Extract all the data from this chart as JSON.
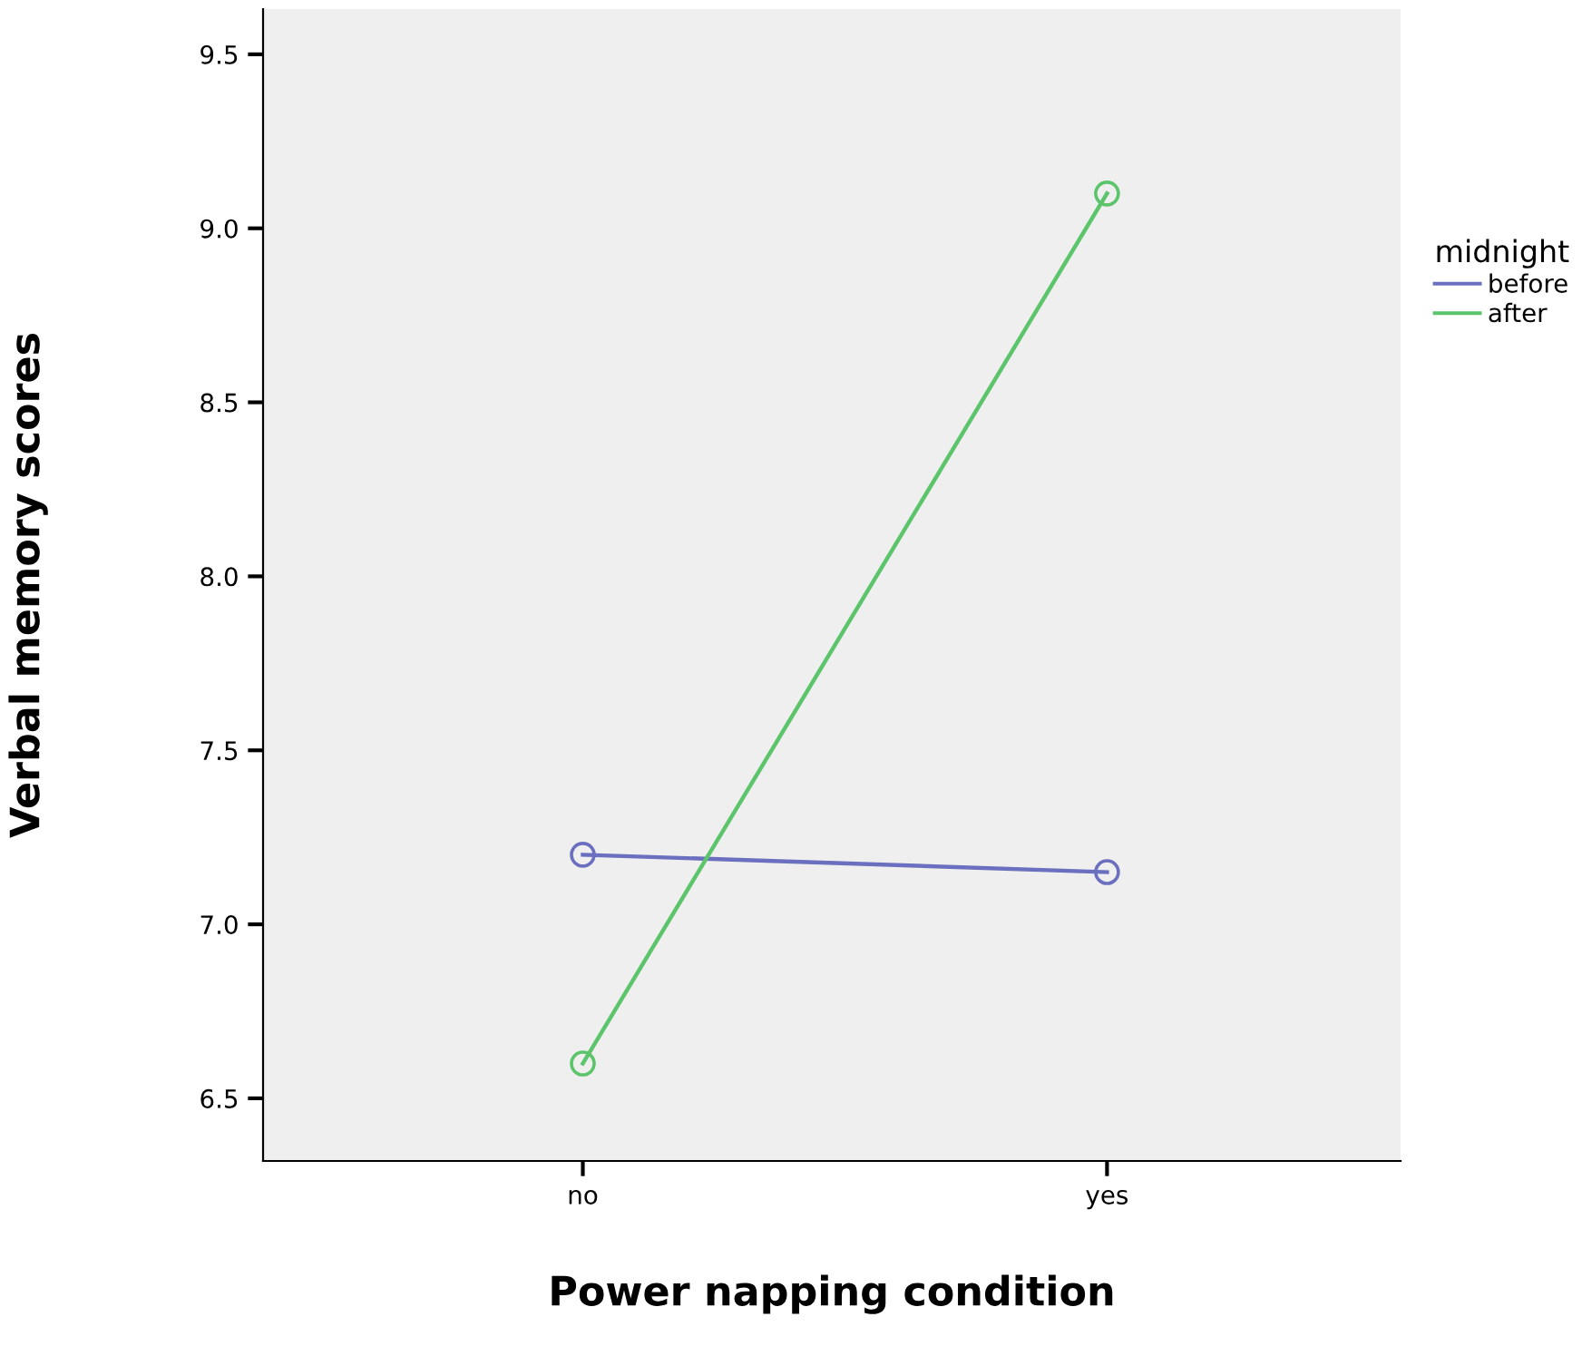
{
  "chart_data": {
    "type": "line",
    "xlabel": "Power napping condition",
    "ylabel": "Verbal memory scores",
    "legend_title": "midnight",
    "categories": [
      "no",
      "yes"
    ],
    "series": [
      {
        "name": "before",
        "color": "#6b6fbf",
        "values": [
          7.2,
          7.15
        ]
      },
      {
        "name": "after",
        "color": "#5cc46b",
        "values": [
          6.6,
          9.1
        ]
      }
    ],
    "ylim": [
      6.32,
      9.63
    ],
    "yticks": [
      {
        "value": 6.5,
        "label": "6.5"
      },
      {
        "value": 7.0,
        "label": "7.0"
      },
      {
        "value": 7.5,
        "label": "7.5"
      },
      {
        "value": 8.0,
        "label": "8.0"
      },
      {
        "value": 8.5,
        "label": "8.5"
      },
      {
        "value": 9.0,
        "label": "9.0"
      },
      {
        "value": 9.5,
        "label": "9.5"
      }
    ],
    "marker": "circle",
    "line_style": "solid",
    "grid": false,
    "legend": "top right"
  }
}
